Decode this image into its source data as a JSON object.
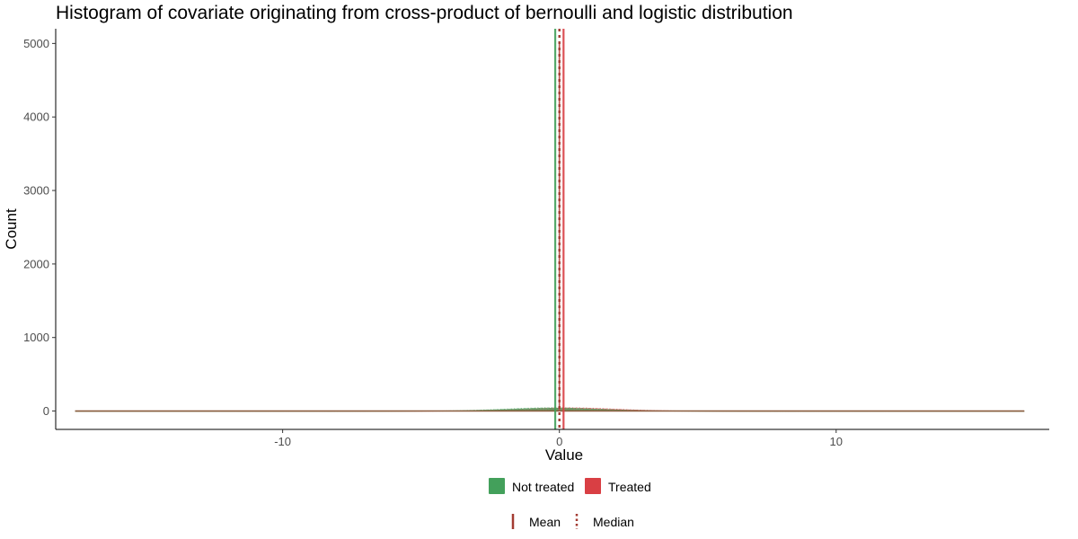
{
  "chart_data": {
    "type": "histogram",
    "title": "Histogram of covariate originating from cross-product of bernoulli and logistic distribution",
    "xlabel": "Value",
    "ylabel": "Count",
    "xlim": [
      -18.2,
      17.7
    ],
    "ylim": [
      -250,
      5200
    ],
    "x_ticks": [
      -10,
      0,
      10
    ],
    "x_tick_labels": [
      "-10",
      "0",
      "10"
    ],
    "y_ticks": [
      0,
      1000,
      2000,
      3000,
      4000,
      5000
    ],
    "y_tick_labels": [
      "0",
      "1000",
      "2000",
      "3000",
      "4000",
      "5000"
    ],
    "grid": false,
    "value_range": [
      -17.5,
      16.8
    ],
    "series": [
      {
        "name": "Not treated",
        "color": "#43A05B",
        "peak_spike": {
          "x": 0,
          "count": 5000
        },
        "mean": -0.15,
        "median": 0
      },
      {
        "name": "Treated",
        "color": "#D93F44",
        "peak_spike": {
          "x": 0,
          "count": 5000
        },
        "mean": 0.15,
        "median": 0
      }
    ],
    "line_types": [
      {
        "name": "Mean",
        "style": "solid"
      },
      {
        "name": "Median",
        "style": "dotted"
      }
    ],
    "legend_position": "bottom",
    "line_color": "#A33B32"
  }
}
